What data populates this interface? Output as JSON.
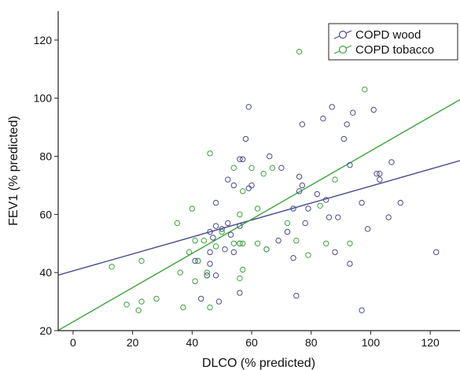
{
  "chart_data": {
    "type": "scatter",
    "xlabel": "DLCO (% predicted)",
    "ylabel": "FEV1 (% predicted)",
    "xlim": [
      -5,
      130
    ],
    "ylim": [
      20,
      130
    ],
    "xticks": [
      0,
      20,
      40,
      60,
      80,
      100,
      120
    ],
    "yticks": [
      20,
      40,
      60,
      80,
      100,
      120
    ],
    "legend_position": "top-right",
    "series": [
      {
        "name": "COPD wood",
        "color": "#4a4a8c",
        "fit_line": {
          "x": [
            -5,
            130
          ],
          "y": [
            39.1,
            78.5
          ]
        },
        "points": [
          [
            59,
            97
          ],
          [
            87,
            97
          ],
          [
            84,
            93
          ],
          [
            94,
            95
          ],
          [
            101,
            96
          ],
          [
            92,
            91
          ],
          [
            77,
            91
          ],
          [
            58,
            86
          ],
          [
            91,
            86
          ],
          [
            56,
            79
          ],
          [
            57,
            79
          ],
          [
            66,
            80
          ],
          [
            93,
            77
          ],
          [
            107,
            78
          ],
          [
            76,
            73
          ],
          [
            70,
            76
          ],
          [
            60,
            70
          ],
          [
            59,
            69
          ],
          [
            52,
            72
          ],
          [
            54,
            70
          ],
          [
            77,
            70
          ],
          [
            102,
            74
          ],
          [
            103,
            74
          ],
          [
            103,
            72
          ],
          [
            76,
            68
          ],
          [
            82,
            67
          ],
          [
            85,
            65
          ],
          [
            74,
            62
          ],
          [
            79,
            62
          ],
          [
            110,
            64
          ],
          [
            97,
            64
          ],
          [
            48,
            64
          ],
          [
            106,
            59
          ],
          [
            86,
            59
          ],
          [
            89,
            59
          ],
          [
            78,
            57
          ],
          [
            52,
            57
          ],
          [
            56,
            56
          ],
          [
            48,
            56
          ],
          [
            50,
            55
          ],
          [
            46,
            54
          ],
          [
            72,
            54
          ],
          [
            99,
            55
          ],
          [
            53,
            53
          ],
          [
            47,
            52
          ],
          [
            69,
            51
          ],
          [
            56,
            50
          ],
          [
            65,
            48
          ],
          [
            51,
            48
          ],
          [
            54,
            47
          ],
          [
            46,
            47
          ],
          [
            88,
            47
          ],
          [
            122,
            47
          ],
          [
            41,
            44
          ],
          [
            74,
            45
          ],
          [
            93,
            43
          ],
          [
            42,
            44
          ],
          [
            46,
            43
          ],
          [
            48,
            39
          ],
          [
            45,
            39
          ],
          [
            43,
            31
          ],
          [
            49,
            30
          ],
          [
            56,
            33
          ],
          [
            75,
            32
          ],
          [
            97,
            27
          ]
        ]
      },
      {
        "name": "COPD tobacco",
        "color": "#3aa53a",
        "fit_line": {
          "x": [
            -5,
            130
          ],
          "y": [
            20.1,
            99.5
          ]
        },
        "points": [
          [
            76,
            116
          ],
          [
            98,
            103
          ],
          [
            67,
            76
          ],
          [
            60,
            76
          ],
          [
            54,
            76
          ],
          [
            64,
            74
          ],
          [
            46,
            81
          ],
          [
            57,
            68
          ],
          [
            88,
            72
          ],
          [
            40,
            62
          ],
          [
            83,
            63
          ],
          [
            62,
            62
          ],
          [
            56,
            60
          ],
          [
            35,
            57
          ],
          [
            72,
            57
          ],
          [
            50,
            54
          ],
          [
            41,
            51
          ],
          [
            44,
            51
          ],
          [
            62,
            50
          ],
          [
            56,
            50
          ],
          [
            57,
            50
          ],
          [
            54,
            50
          ],
          [
            75,
            51
          ],
          [
            85,
            50
          ],
          [
            93,
            50
          ],
          [
            48,
            49
          ],
          [
            65,
            48
          ],
          [
            79,
            46
          ],
          [
            39,
            47
          ],
          [
            13,
            42
          ],
          [
            23,
            44
          ],
          [
            42,
            44
          ],
          [
            36,
            40
          ],
          [
            45,
            40
          ],
          [
            57,
            41
          ],
          [
            41,
            37
          ],
          [
            56,
            38
          ],
          [
            28,
            31
          ],
          [
            23,
            30
          ],
          [
            18,
            29
          ],
          [
            22,
            27
          ],
          [
            37,
            28
          ],
          [
            46,
            28
          ]
        ]
      }
    ]
  }
}
